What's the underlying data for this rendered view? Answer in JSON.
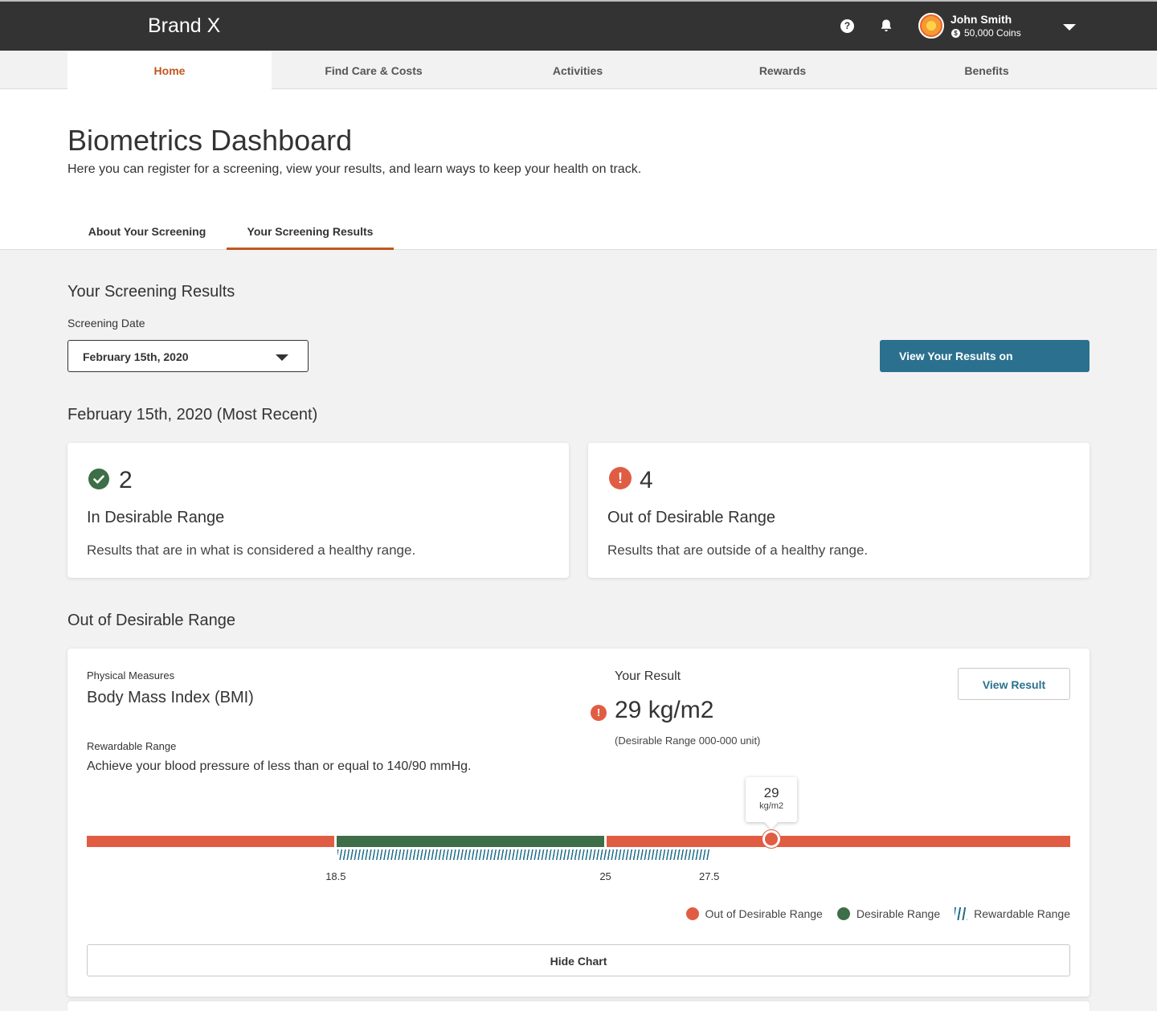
{
  "topbar": {
    "brand": "Brand X",
    "user_name": "John Smith",
    "coins": "50,000 Coins",
    "help_glyph": "?"
  },
  "nav": {
    "items": [
      {
        "label": "Home",
        "active": true
      },
      {
        "label": "Find Care & Costs",
        "active": false
      },
      {
        "label": "Activities",
        "active": false
      },
      {
        "label": "Rewards",
        "active": false
      },
      {
        "label": "Benefits",
        "active": false
      }
    ]
  },
  "header": {
    "title": "Biometrics Dashboard",
    "subtitle": "Here you can register for a screening, view your results, and learn ways to keep your health on track.",
    "tabs": [
      {
        "label": "About Your Screening",
        "active": false
      },
      {
        "label": "Your Screening Results",
        "active": true
      }
    ]
  },
  "results": {
    "section_title": "Your Screening Results",
    "date_label": "Screening Date",
    "date_value": "February 15th, 2020",
    "view_button": "View Your Results on",
    "recent_title": "February 15th, 2020 (Most Recent)"
  },
  "summary_cards": [
    {
      "count": "2",
      "title": "In Desirable Range",
      "description": "Results that are in what is considered a healthy range.",
      "status": "in-range"
    },
    {
      "count": "4",
      "title": "Out of Desirable Range",
      "description": "Results that are outside of a healthy range.",
      "status": "out-of-range",
      "icon_glyph": "!"
    }
  ],
  "out_of_range": {
    "section_title": "Out of Desirable Range",
    "measure": {
      "category": "Physical Measures",
      "name": "Body Mass Index (BMI)",
      "rewardable_label": "Rewardable Range",
      "rewardable_text": "Achieve your blood pressure of less than or equal to 140/90 mmHg.",
      "result_label": "Your Result",
      "result_value": "29 kg/m2",
      "range_note": "(Desirable Range 000-000 unit)",
      "view_button": "View Result",
      "alert_glyph": "!",
      "gauge": {
        "min": 12.5,
        "max": 36.2,
        "desirable_start": 18.5,
        "desirable_end": 25,
        "rewardable_end": 27.5,
        "ticks": [
          "18.5",
          "25",
          "27.5"
        ],
        "marker_value": 29,
        "tooltip_value": "29",
        "tooltip_unit": "kg/m2"
      },
      "legend": [
        {
          "label": "Out of Desirable Range",
          "color": "#e05d44"
        },
        {
          "label": "Desirable Range",
          "color": "#3d6e47"
        },
        {
          "label": "Rewardable Range",
          "color": "#1f6e8a"
        }
      ],
      "hide_chart_button": "Hide Chart"
    }
  },
  "colors": {
    "accent": "#c2561f",
    "primary_button": "#2b718f",
    "out_of_range": "#e05d44",
    "desirable": "#3d6e47",
    "rewardable": "#1f6e8a"
  }
}
